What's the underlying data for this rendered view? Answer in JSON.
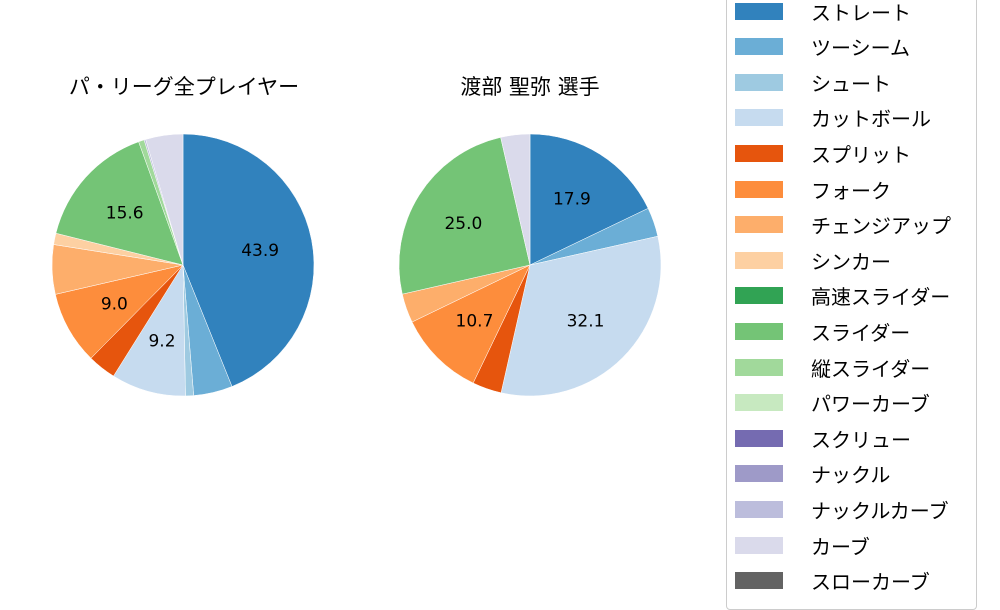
{
  "chart_data": [
    {
      "type": "pie",
      "title": "パ・リーグ全プレイヤー",
      "start_angle": 90,
      "direction": "clockwise",
      "categories": [
        "ストレート",
        "ツーシーム",
        "シュート",
        "カットボール",
        "スプリット",
        "フォーク",
        "チェンジアップ",
        "シンカー",
        "スライダー",
        "縦スライダー",
        "ナックルカーブ",
        "カーブ"
      ],
      "values": [
        43.9,
        4.8,
        1.0,
        9.2,
        3.5,
        9.0,
        6.1,
        1.4,
        15.6,
        0.7,
        0.2,
        4.6
      ],
      "shown_labels": {
        "ストレート": "43.9",
        "カットボール": "9.2",
        "フォーク": "9.0",
        "スライダー": "15.6"
      }
    },
    {
      "type": "pie",
      "title": "渡部 聖弥  選手",
      "start_angle": 90,
      "direction": "clockwise",
      "categories": [
        "ストレート",
        "ツーシーム",
        "カットボール",
        "スプリット",
        "フォーク",
        "チェンジアップ",
        "スライダー",
        "カーブ"
      ],
      "values": [
        17.9,
        3.6,
        32.1,
        3.6,
        10.7,
        3.6,
        25.0,
        3.6
      ],
      "shown_labels": {
        "ストレート": "17.9",
        "カットボール": "32.1",
        "フォーク": "10.7",
        "スライダー": "25.0"
      }
    }
  ],
  "colors": {
    "ストレート": "#3182bd",
    "ツーシーム": "#6baed6",
    "シュート": "#9ecae1",
    "カットボール": "#c6dbef",
    "スプリット": "#e6550d",
    "フォーク": "#fd8d3c",
    "チェンジアップ": "#fdae6b",
    "シンカー": "#fdd0a2",
    "高速スライダー": "#31a354",
    "スライダー": "#74c476",
    "縦スライダー": "#a1d99b",
    "パワーカーブ": "#c7e9c0",
    "スクリュー": "#756bb1",
    "ナックル": "#9e9ac8",
    "ナックルカーブ": "#bcbddc",
    "カーブ": "#dadaeb",
    "スローカーブ": "#636363"
  },
  "legend": {
    "items": [
      "ストレート",
      "ツーシーム",
      "シュート",
      "カットボール",
      "スプリット",
      "フォーク",
      "チェンジアップ",
      "シンカー",
      "高速スライダー",
      "スライダー",
      "縦スライダー",
      "パワーカーブ",
      "スクリュー",
      "ナックル",
      "ナックルカーブ",
      "カーブ",
      "スローカーブ"
    ]
  }
}
